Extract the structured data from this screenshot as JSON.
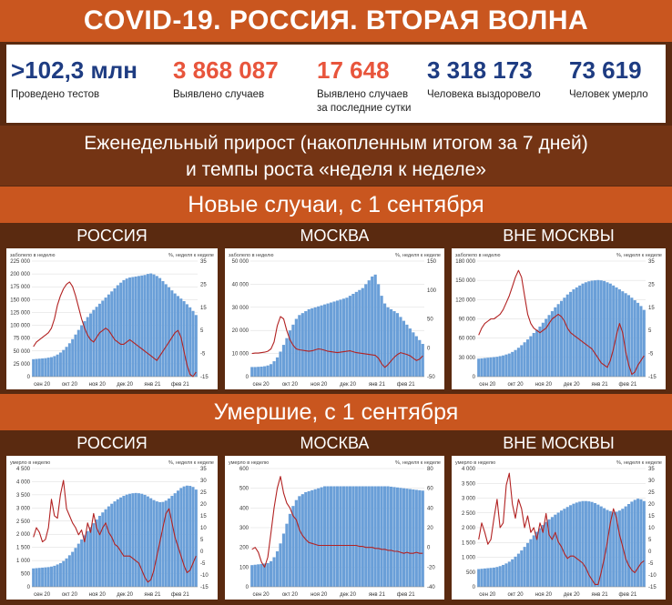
{
  "header": {
    "title": "COVID-19. РОССИЯ. ВТОРАЯ ВОЛНА"
  },
  "stats": [
    {
      "value": ">102,3 млн",
      "label": "Проведено тестов",
      "color": "#1e3c82"
    },
    {
      "value": "3 868 087",
      "label": "Выявлено случаев",
      "color": "#e8553c"
    },
    {
      "value": "17 648",
      "label": "Выявлено случаев за последние сутки",
      "color": "#e8553c"
    },
    {
      "value": "3 318 173",
      "label": "Человека выздоровело",
      "color": "#1e3c82"
    },
    {
      "value": "73 619",
      "label": "Человек умерло",
      "color": "#1e3c82"
    }
  ],
  "subtitle": {
    "line1": "Еженедельный прирост (накопленным итогом за 7 дней)",
    "line2": "и темпы роста «неделя к неделе»"
  },
  "sections": {
    "cases_title": "Новые случаи, с 1 сентября",
    "deaths_title": "Умершие, с 1 сентября"
  },
  "columns": [
    "РОССИЯ",
    "МОСКВА",
    "ВНЕ МОСКВЫ"
  ],
  "colors": {
    "bar": "#6a9fd8",
    "line": "#b22222",
    "header_orange": "#c9561f",
    "header_brown": "#5a2a10"
  },
  "chart_data": [
    {
      "type": "bar+line",
      "region": "РОССИЯ",
      "metric": "cases",
      "left_label": "заболело в неделю",
      "right_label": "%, неделя к неделе",
      "x_ticks": [
        "сен 20",
        "окт 20",
        "ноя 20",
        "дек 20",
        "янв 21",
        "фев 21"
      ],
      "left_ylim": [
        0,
        225000
      ],
      "left_ticks": [
        "0",
        "25 000",
        "50 000",
        "75 000",
        "100 000",
        "125 000",
        "150 000",
        "175 000",
        "200 000",
        "225 000"
      ],
      "right_ylim": [
        -15,
        35
      ],
      "right_ticks": [
        "-15",
        "-5",
        "5",
        "15",
        "25",
        "35"
      ],
      "bars": [
        34000,
        34500,
        35000,
        35500,
        36000,
        37000,
        38000,
        40000,
        43000,
        47000,
        52000,
        58000,
        65000,
        73000,
        82000,
        91000,
        100000,
        108000,
        116000,
        123000,
        130000,
        136000,
        142000,
        148000,
        154000,
        160000,
        166000,
        172000,
        178000,
        183000,
        188000,
        191000,
        193000,
        194000,
        195000,
        196000,
        197000,
        198000,
        200000,
        201000,
        199000,
        196000,
        192000,
        186000,
        180000,
        174000,
        168000,
        162000,
        157000,
        152000,
        147000,
        141000,
        135000,
        128000,
        120000
      ],
      "line": [
        -2,
        0,
        1,
        2,
        3,
        4,
        6,
        10,
        16,
        20,
        23,
        25,
        26,
        24,
        20,
        15,
        10,
        6,
        3,
        1,
        0,
        2,
        4,
        5,
        6,
        5,
        3,
        1,
        0,
        -1,
        -1,
        0,
        1,
        0,
        -1,
        -2,
        -3,
        -4,
        -5,
        -6,
        -7,
        -8,
        -6,
        -4,
        -2,
        0,
        2,
        4,
        5,
        2,
        -4,
        -10,
        -14,
        -15,
        -13
      ]
    },
    {
      "type": "bar+line",
      "region": "МОСКВА",
      "metric": "cases",
      "left_label": "заболело в неделю",
      "right_label": "%, неделя к неделе",
      "x_ticks": [
        "сен 20",
        "окт 20",
        "ноя 20",
        "дек 20",
        "янв 21",
        "фев 21"
      ],
      "left_ylim": [
        0,
        60000
      ],
      "left_ticks": [
        "0",
        "10 000",
        "20 000",
        "30 000",
        "40 000",
        "50 000"
      ],
      "right_ylim": [
        -50,
        200
      ],
      "right_ticks": [
        "-50",
        "0",
        "50",
        "100",
        "150"
      ],
      "bars": [
        5000,
        5000,
        5100,
        5200,
        5400,
        5800,
        6500,
        8000,
        10000,
        13000,
        16500,
        20000,
        24000,
        27000,
        30000,
        32000,
        33000,
        34000,
        35000,
        35500,
        36000,
        36500,
        37000,
        37500,
        38000,
        38500,
        39000,
        39500,
        40000,
        40500,
        41000,
        42000,
        43000,
        44000,
        45000,
        46000,
        48000,
        50000,
        52000,
        53000,
        48000,
        42000,
        38000,
        36000,
        35000,
        34000,
        33000,
        31000,
        29000,
        27000,
        25000,
        23000,
        21000,
        19000,
        17000
      ],
      "line": [
        0,
        1,
        1,
        2,
        3,
        5,
        10,
        25,
        60,
        80,
        75,
        50,
        30,
        18,
        10,
        8,
        7,
        6,
        5,
        6,
        8,
        10,
        9,
        7,
        5,
        4,
        3,
        2,
        3,
        4,
        5,
        6,
        4,
        2,
        1,
        0,
        -1,
        -2,
        -3,
        -4,
        -10,
        -22,
        -30,
        -24,
        -16,
        -8,
        -2,
        2,
        0,
        -2,
        -5,
        -10,
        -15,
        -12,
        -5
      ]
    },
    {
      "type": "bar+line",
      "region": "ВНЕ МОСКВЫ",
      "metric": "cases",
      "left_label": "заболело в неделю",
      "right_label": "%, неделя к неделе",
      "x_ticks": [
        "сен 20",
        "окт 20",
        "ноя 20",
        "дек 20",
        "янв 21",
        "фев 21"
      ],
      "left_ylim": [
        0,
        180000
      ],
      "left_ticks": [
        "0",
        "30 000",
        "60 000",
        "90 000",
        "120 000",
        "150 000",
        "180 000"
      ],
      "right_ylim": [
        -15,
        35
      ],
      "right_ticks": [
        "-15",
        "-5",
        "5",
        "15",
        "25",
        "35"
      ],
      "bars": [
        28000,
        28500,
        29000,
        29500,
        30000,
        30500,
        31000,
        32000,
        33000,
        34500,
        36000,
        38500,
        41500,
        45000,
        49000,
        53500,
        58000,
        63000,
        68000,
        73000,
        78000,
        84000,
        90000,
        96000,
        102000,
        108000,
        113000,
        118000,
        123000,
        128000,
        132000,
        136000,
        139000,
        142000,
        145000,
        147000,
        148500,
        149500,
        150000,
        150500,
        150000,
        149000,
        147000,
        145000,
        142000,
        139000,
        136000,
        133000,
        130000,
        127000,
        123000,
        119000,
        115000,
        110000,
        104000
      ],
      "line": [
        3,
        6,
        8,
        9,
        10,
        10,
        11,
        12,
        14,
        17,
        20,
        24,
        28,
        31,
        28,
        20,
        12,
        8,
        6,
        5,
        4,
        5,
        6,
        8,
        10,
        11,
        12,
        11,
        9,
        6,
        4,
        3,
        2,
        1,
        0,
        -1,
        -2,
        -3,
        -5,
        -7,
        -9,
        -10,
        -11,
        -8,
        -3,
        3,
        8,
        4,
        -4,
        -10,
        -14,
        -13,
        -10,
        -8,
        -6
      ]
    },
    {
      "type": "bar+line",
      "region": "РОССИЯ",
      "metric": "deaths",
      "left_label": "умерло в неделю",
      "right_label": "%, неделя к неделе",
      "x_ticks": [
        "сен 20",
        "окт 20",
        "ноя 20",
        "дек 20",
        "янв 21",
        "фев 21"
      ],
      "left_ylim": [
        0,
        4500
      ],
      "left_ticks": [
        "0",
        "500",
        "1 000",
        "1 500",
        "2 000",
        "2 500",
        "3 000",
        "3 500",
        "4 000",
        "4 500"
      ],
      "right_ylim": [
        -15,
        35
      ],
      "right_ticks": [
        "-15",
        "-10",
        "-5",
        "0",
        "5",
        "10",
        "15",
        "20",
        "25",
        "30",
        "35"
      ],
      "bars": [
        700,
        710,
        720,
        730,
        740,
        750,
        770,
        800,
        850,
        900,
        980,
        1080,
        1200,
        1330,
        1480,
        1640,
        1800,
        1960,
        2120,
        2270,
        2420,
        2560,
        2700,
        2830,
        2950,
        3060,
        3160,
        3250,
        3330,
        3400,
        3460,
        3510,
        3540,
        3560,
        3570,
        3560,
        3540,
        3500,
        3440,
        3370,
        3300,
        3250,
        3220,
        3230,
        3280,
        3360,
        3460,
        3560,
        3660,
        3760,
        3820,
        3850,
        3840,
        3800,
        3700
      ],
      "line": [
        6,
        10,
        8,
        4,
        5,
        10,
        22,
        15,
        14,
        24,
        30,
        18,
        15,
        12,
        10,
        7,
        9,
        4,
        12,
        8,
        16,
        10,
        7,
        10,
        12,
        8,
        6,
        3,
        2,
        0,
        -2,
        -2,
        -2,
        -3,
        -4,
        -5,
        -8,
        -11,
        -13,
        -12,
        -8,
        -2,
        4,
        10,
        16,
        18,
        12,
        6,
        2,
        -2,
        -6,
        -9,
        -8,
        -5,
        -2
      ]
    },
    {
      "type": "bar+line",
      "region": "МОСКВА",
      "metric": "deaths",
      "left_label": "умерло в неделю",
      "right_label": "%, неделя к неделе",
      "x_ticks": [
        "сен 20",
        "окт 20",
        "ноя 20",
        "дек 20",
        "янв 21",
        "фев 21"
      ],
      "left_ylim": [
        0,
        600
      ],
      "left_ticks": [
        "0",
        "100",
        "200",
        "300",
        "400",
        "500",
        "600"
      ],
      "right_ylim": [
        -40,
        80
      ],
      "right_ticks": [
        "-40",
        "-20",
        "0",
        "20",
        "40",
        "60",
        "80"
      ],
      "bars": [
        110,
        112,
        114,
        116,
        118,
        120,
        130,
        150,
        180,
        220,
        270,
        320,
        370,
        410,
        440,
        460,
        470,
        480,
        485,
        490,
        495,
        500,
        505,
        510,
        510,
        510,
        510,
        510,
        510,
        510,
        510,
        510,
        510,
        510,
        510,
        510,
        510,
        510,
        510,
        510,
        510,
        510,
        510,
        510,
        508,
        506,
        504,
        502,
        500,
        498,
        496,
        494,
        492,
        490,
        488
      ],
      "line": [
        -2,
        0,
        -5,
        -15,
        -20,
        -10,
        15,
        40,
        60,
        72,
        55,
        45,
        40,
        32,
        28,
        18,
        12,
        8,
        5,
        4,
        3,
        2,
        2,
        2,
        2,
        2,
        2,
        2,
        2,
        2,
        2,
        2,
        2,
        2,
        1,
        1,
        0,
        0,
        0,
        -1,
        -1,
        -2,
        -2,
        -3,
        -3,
        -4,
        -4,
        -5,
        -6,
        -5,
        -6,
        -6,
        -5,
        -6,
        -6
      ]
    },
    {
      "type": "bar+line",
      "region": "ВНЕ МОСКВЫ",
      "metric": "deaths",
      "left_label": "умерло в неделю",
      "right_label": "%, неделя к неделе",
      "x_ticks": [
        "сен 20",
        "окт 20",
        "ноя 20",
        "дек 20",
        "янв 21",
        "фев 21"
      ],
      "left_ylim": [
        0,
        4000
      ],
      "left_ticks": [
        "0",
        "500",
        "1 000",
        "1 500",
        "2 000",
        "2 500",
        "3 000",
        "3 500",
        "4 000"
      ],
      "right_ylim": [
        -15,
        35
      ],
      "right_ticks": [
        "-15",
        "-10",
        "-5",
        "0",
        "5",
        "10",
        "15",
        "20",
        "25",
        "30",
        "35"
      ],
      "bars": [
        600,
        610,
        620,
        630,
        640,
        650,
        670,
        700,
        740,
        790,
        850,
        930,
        1020,
        1120,
        1230,
        1350,
        1480,
        1610,
        1740,
        1860,
        1980,
        2090,
        2190,
        2280,
        2360,
        2440,
        2510,
        2580,
        2640,
        2700,
        2760,
        2810,
        2850,
        2880,
        2900,
        2900,
        2890,
        2870,
        2830,
        2780,
        2720,
        2660,
        2600,
        2560,
        2530,
        2540,
        2580,
        2640,
        2720,
        2800,
        2880,
        2940,
        2980,
        2960,
        2900
      ],
      "line": [
        5,
        12,
        8,
        3,
        5,
        14,
        22,
        10,
        12,
        28,
        33,
        20,
        14,
        22,
        18,
        10,
        15,
        8,
        10,
        5,
        12,
        8,
        16,
        7,
        5,
        8,
        4,
        2,
        -1,
        -3,
        -2,
        -2,
        -3,
        -4,
        -5,
        -7,
        -10,
        -12,
        -14,
        -14,
        -9,
        -3,
        4,
        12,
        18,
        14,
        7,
        2,
        -3,
        -6,
        -8,
        -9,
        -7,
        -5,
        -4
      ]
    }
  ]
}
